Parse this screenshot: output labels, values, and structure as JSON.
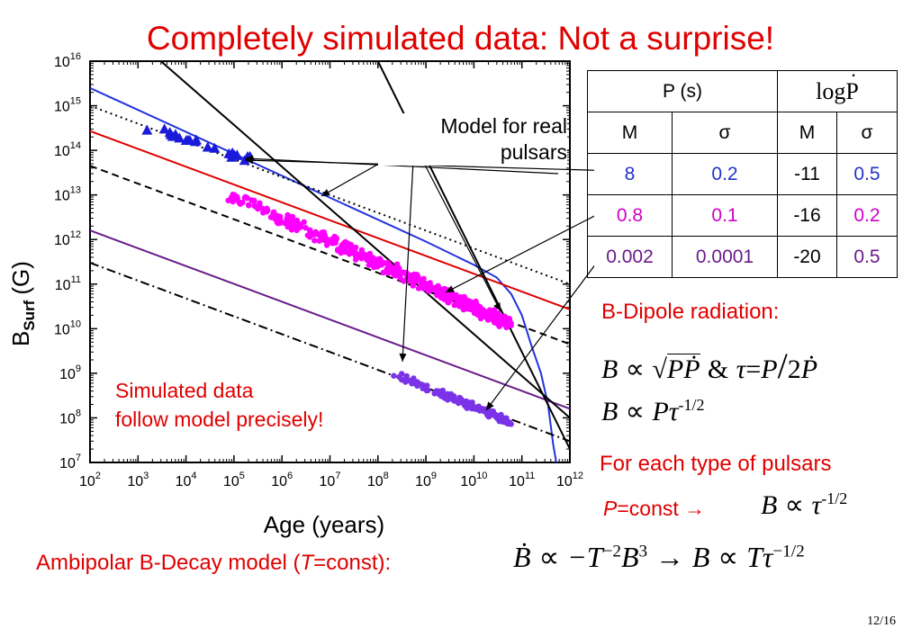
{
  "slide": {
    "title": "Completely simulated data: Not a surprise!",
    "page": "12/16"
  },
  "chart_data": {
    "type": "scatter",
    "xscale": "log",
    "yscale": "log",
    "xlim": [
      100,
      1000000000000
    ],
    "ylim": [
      10000000,
      10000000000000000
    ],
    "xlabel": "Age (years)",
    "ylabel": "B",
    "ylabel_sub": "Surf",
    "ylabel_unit": "(G)",
    "x_tick_exponents": [
      "2",
      "3",
      "4",
      "5",
      "6",
      "7",
      "8",
      "9",
      "10",
      "11",
      "12"
    ],
    "y_tick_exponents": [
      "7",
      "8",
      "9",
      "10",
      "11",
      "12",
      "13",
      "14",
      "15",
      "16"
    ],
    "tick_base": "10",
    "lines": [
      {
        "color": "#2233dd",
        "style": "solid",
        "points": [
          [
            100,
            2500000000000000.0
          ],
          [
            1000000000.0,
            900000000000.0
          ],
          [
            10000000000.0,
            270000000000.0
          ],
          [
            30000000000.0,
            140000000000.0
          ],
          [
            60000000000.0,
            60000000000.0
          ],
          [
            100000000000.0,
            20000000000.0
          ],
          [
            160000000000.0,
            4000000000.0
          ],
          [
            250000000000.0,
            1000000000.0
          ],
          [
            350000000000.0,
            200000000.0
          ],
          [
            450000000000.0,
            25000000.0
          ],
          [
            520000000000.0,
            10000000.0
          ]
        ]
      },
      {
        "color": "#000000",
        "style": "dotted",
        "points": [
          [
            100,
            1000000000000000.0
          ],
          [
            1000000000000.0,
            100000000000.0
          ]
        ]
      },
      {
        "color": "#e00000",
        "style": "solid",
        "points": [
          [
            100,
            270000000000000.0
          ],
          [
            1000000000000.0,
            27000000000.0
          ]
        ]
      },
      {
        "color": "#000000",
        "style": "dashed",
        "points": [
          [
            100,
            45000000000000.0
          ],
          [
            1000000000000.0,
            4500000000.0
          ]
        ]
      },
      {
        "color": "#6a1b8a",
        "style": "solid",
        "points": [
          [
            100,
            1600000000000.0
          ],
          [
            1000000000000.0,
            160000000.0
          ]
        ]
      },
      {
        "color": "#000000",
        "style": "dashdot",
        "points": [
          [
            100,
            300000000000.0
          ],
          [
            1000000000000.0,
            30000000.0
          ]
        ]
      },
      {
        "color": "#000000",
        "style": "solid",
        "points": [
          [
            3000,
            1e+16
          ],
          [
            1000000000000.0,
            100000000.0
          ]
        ]
      },
      {
        "color": "#000000",
        "style": "solid",
        "points": [
          [
            100000000.0,
            1e+16
          ],
          [
            1000000000000.0,
            20000000.0
          ]
        ]
      }
    ],
    "series": [
      {
        "marker": "triangle",
        "color": "#1a1adb",
        "x_range": [
          1500,
          220000
        ],
        "trend": [
          [
            1500,
            330000000000000.0
          ],
          [
            220000,
            65000000000000.0
          ]
        ],
        "spread_dex": 0.07
      },
      {
        "marker": "circle",
        "color": "#ff00ff",
        "x_range": [
          70000,
          60000000000
        ],
        "trend": [
          [
            70000,
            11500000000000.0
          ],
          [
            60000000000,
            12000000000.0
          ]
        ],
        "spread_dex": 0.09
      },
      {
        "marker": "circle",
        "color": "#7a33e8",
        "x_range": [
          200000000,
          60000000000
        ],
        "trend": [
          [
            200000000,
            1000000000.0
          ],
          [
            60000000000,
            80000000.0
          ]
        ],
        "spread_dex": 0.05
      }
    ]
  },
  "annotations": {
    "model_line1": "Model for real",
    "model_line2": "pulsars",
    "sim_line1": "Simulated data",
    "sim_line2": "follow model precisely!"
  },
  "table": {
    "head_p": "P (s)",
    "head_pdot": "log",
    "head_pdot_var": "P",
    "sub": [
      "M",
      "σ",
      "M",
      "σ"
    ],
    "rows": [
      {
        "color": "#2233cc",
        "p_m": "8",
        "p_s": "0.2",
        "l_m": "-11",
        "l_s": "0.5"
      },
      {
        "color": "#d000c8",
        "p_m": "0.8",
        "p_s": "0.1",
        "l_m": "-16",
        "l_s": "0.2"
      },
      {
        "color": "#6a1b8a",
        "p_m": "0.002",
        "p_s": "0.0001",
        "l_m": "-20",
        "l_s": "0.5"
      }
    ]
  },
  "text": {
    "bdipole": "B-Dipole radiation:",
    "foreach": "For each type of pulsars",
    "pconst_var": "P",
    "pconst_rest": "=const",
    "arrow": "→",
    "ambi_pre": "Ambipolar B-Decay model (",
    "ambi_var": "T",
    "ambi_post": "=const):"
  },
  "eq": {
    "B": "B",
    "prop": "∝",
    "sqrt": "√",
    "P": "P",
    "Pdot": "Ṗ",
    "amp": "&",
    "tau": "τ",
    "eq": "=",
    "slash": "/",
    "two": "2",
    "exp_half": "-1/2",
    "Bdot": "Ḃ",
    "minusT": "−T",
    "exp_m2": "−2",
    "exp_3": "3",
    "arrow": "→",
    "T": "T",
    "exp_half2": "−1/2"
  }
}
